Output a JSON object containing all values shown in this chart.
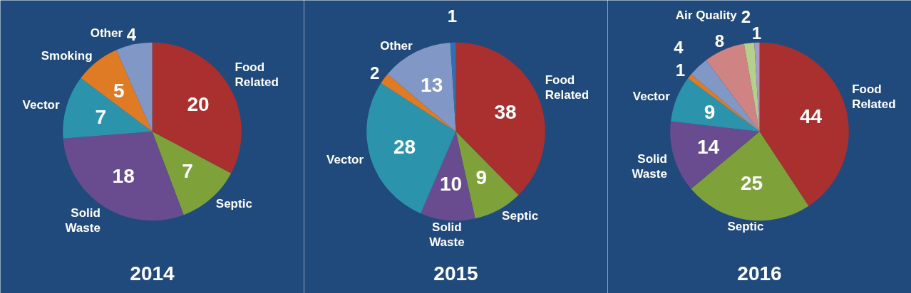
{
  "chart_data": [
    {
      "type": "pie",
      "title": "2014",
      "categories": [
        "Food Related",
        "Septic",
        "Solid Waste",
        "Vector",
        "Smoking",
        "Other"
      ],
      "values": [
        20,
        7,
        18,
        7,
        5,
        4
      ],
      "colors": [
        "#a9302e",
        "#7ea13a",
        "#684c8f",
        "#2c93ad",
        "#e07b25",
        "#8197c6"
      ],
      "data_labels": true
    },
    {
      "type": "pie",
      "title": "2015",
      "categories": [
        "Food Related",
        "Septic",
        "Solid Waste",
        "Vector",
        null,
        "Other",
        null
      ],
      "values": [
        38,
        9,
        10,
        28,
        2,
        13,
        1
      ],
      "colors": [
        "#a9302e",
        "#7ea13a",
        "#684c8f",
        "#2c93ad",
        "#e07b25",
        "#8197c6",
        "#2f6fba"
      ],
      "data_labels": true
    },
    {
      "type": "pie",
      "title": "2016",
      "categories": [
        "Food Related",
        "Septic",
        "Solid Waste",
        "Vector",
        null,
        null,
        null,
        "Air Quality",
        null
      ],
      "values": [
        44,
        25,
        14,
        9,
        1,
        4,
        8,
        2,
        1
      ],
      "colors": [
        "#a9302e",
        "#7ea13a",
        "#684c8f",
        "#2c93ad",
        "#e07b25",
        "#8197c6",
        "#d08383",
        "#b5d08a",
        "#a99bc9"
      ],
      "data_labels": true
    }
  ]
}
